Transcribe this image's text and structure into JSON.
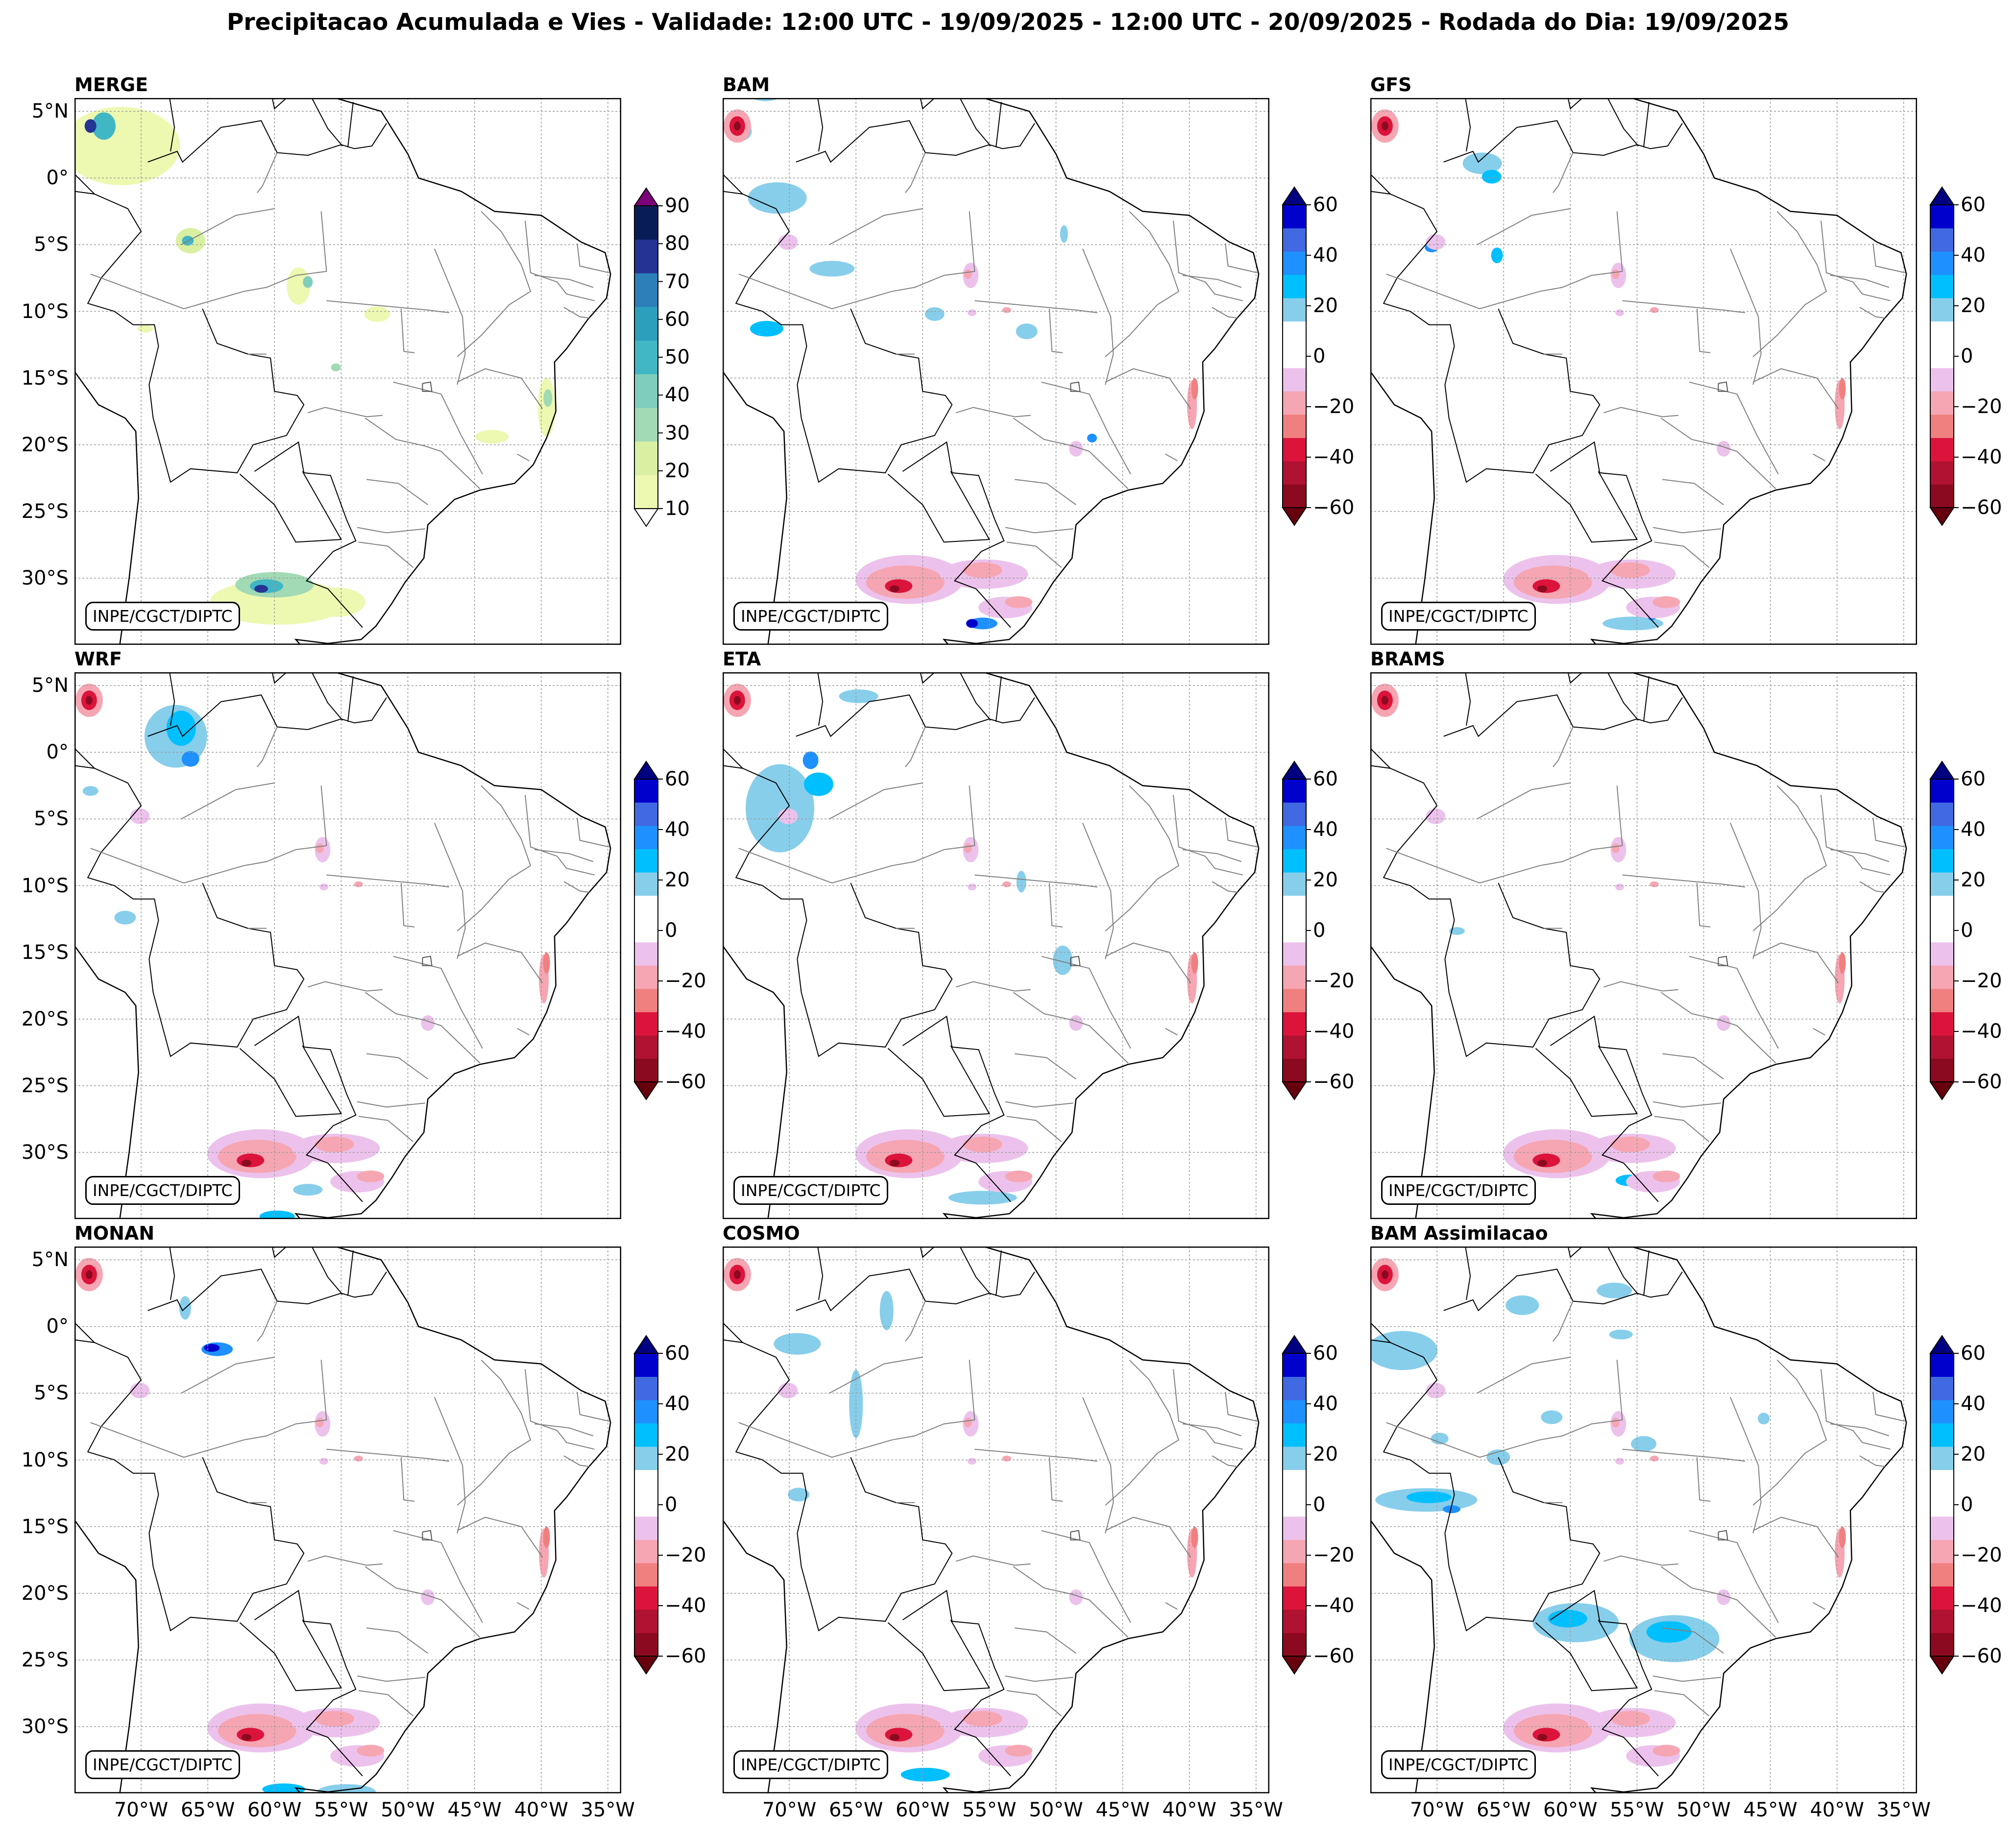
{
  "title": "Precipitacao Acumulada e Vies - Validade: 12:00 UTC - 19/09/2025 - 12:00 UTC - 20/09/2025 - Rodada do Dia: 19/09/2025",
  "credit": "INPE/CGCT/DIPTC",
  "lat_labels": [
    "5°N",
    "0°",
    "5°S",
    "10°S",
    "15°S",
    "20°S",
    "25°S",
    "30°S"
  ],
  "lon_labels": [
    "70°W",
    "65°W",
    "60°W",
    "55°W",
    "50°W",
    "45°W",
    "40°W",
    "35°W"
  ],
  "panels": [
    {
      "title": "MERGE",
      "type": "precipitation"
    },
    {
      "title": "BAM",
      "type": "bias"
    },
    {
      "title": "GFS",
      "type": "bias"
    },
    {
      "title": "WRF",
      "type": "bias"
    },
    {
      "title": "ETA",
      "type": "bias"
    },
    {
      "title": "BRAMS",
      "type": "bias"
    },
    {
      "title": "MONAN",
      "type": "bias"
    },
    {
      "title": "COSMO",
      "type": "bias"
    },
    {
      "title": "BAM Assimilacao",
      "type": "bias"
    }
  ],
  "precip_colorbar": {
    "ticks": [
      "90",
      "80",
      "70",
      "60",
      "50",
      "40",
      "30",
      "20",
      "10"
    ],
    "colors": [
      "#edf8b1",
      "#d9f0a3",
      "#a1dab4",
      "#7fcdbb",
      "#41b6c4",
      "#2c9fbd",
      "#2c7fb8",
      "#253494",
      "#081d58"
    ],
    "extend_max": "#7a0177",
    "extend_min": "#ffffff"
  },
  "bias_colorbar": {
    "ticks": [
      "60",
      "40",
      "20",
      "0",
      "−20",
      "−40",
      "−60"
    ],
    "colors": [
      "#8b0a1f",
      "#b01232",
      "#dc143c",
      "#f08080",
      "#f6a6b2",
      "#ecc2ec",
      "#ffffff",
      "#ffffff",
      "#87ceeb",
      "#00bfff",
      "#1e90ff",
      "#4169e1",
      "#0000cd"
    ],
    "extend_max": "#000080",
    "extend_min": "#67000d"
  }
}
